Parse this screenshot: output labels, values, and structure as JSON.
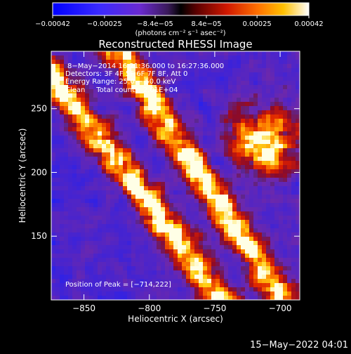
{
  "chart_data": {
    "type": "heatmap",
    "title": "Reconstructed RHESSI Image",
    "xlabel": "Heliocentric X (arcsec)",
    "ylabel": "Heliocentric Y (arcsec)",
    "x_range": [
      -875,
      -685
    ],
    "y_range": [
      100,
      295
    ],
    "x_ticks": [
      -850,
      -800,
      -750,
      -700
    ],
    "x_tick_labels": [
      "−850",
      "−800",
      "−750",
      "−700"
    ],
    "y_ticks": [
      150,
      200,
      250
    ],
    "y_tick_labels": [
      "150",
      "200",
      "250"
    ],
    "colorbar": {
      "range": [
        -0.00042,
        0.00042
      ],
      "ticks": [
        -0.00042,
        -0.00025,
        -8.4e-05,
        8.4e-05,
        0.00025,
        0.00042
      ],
      "tick_labels": [
        "−0.00042",
        "−0.00025",
        "−8.4e−05",
        "8.4e−05",
        "0.00025",
        "0.00042"
      ],
      "units": "(photons cm⁻² s⁻¹ asec⁻²)"
    },
    "annotations": {
      "time": "8−May−2014 16:21:36.000 to 16:27:36.000",
      "detectors": "Detectors: 3F 4F 5F 6F 7F 8F, Att 0",
      "energy": "Energy Range: 25.0 − 50.0 keV",
      "clean": "Clean     Total counts: 2.01E+04",
      "peak": "Position of Peak = [−714,222]"
    },
    "footer_date": "15−May−2022 04:01",
    "colors": {
      "background": "#000000",
      "text": "#ffffff"
    }
  }
}
